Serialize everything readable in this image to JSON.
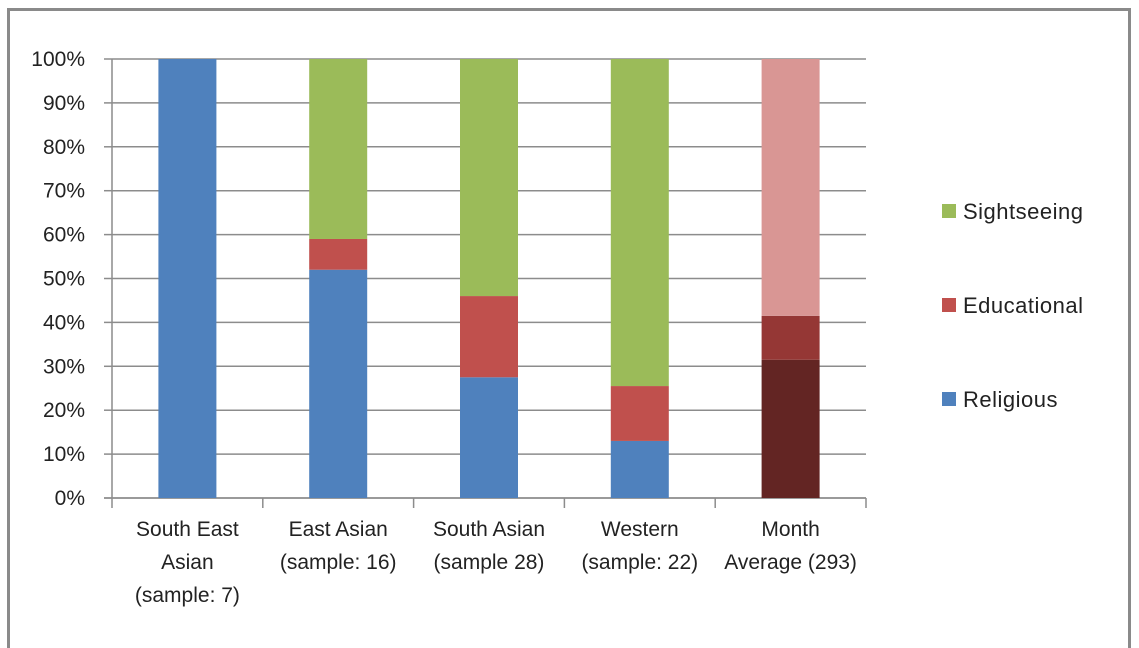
{
  "chart_data": {
    "type": "bar",
    "stacked": true,
    "percent_stacked": true,
    "categories": [
      [
        "South East",
        "Asian",
        "(sample: 7)"
      ],
      [
        "East Asian",
        "(sample: 16)"
      ],
      [
        "South Asian",
        "(sample 28)"
      ],
      [
        "Western",
        "(sample: 22)"
      ],
      [
        "Month",
        "Average (293)"
      ]
    ],
    "series": [
      {
        "name": "Religious",
        "color": "#4f81bd",
        "values": [
          100,
          52,
          27.5,
          13,
          31.5
        ]
      },
      {
        "name": "Educational",
        "color": "#c0504d",
        "values": [
          0,
          7,
          18.5,
          12.5,
          10
        ]
      },
      {
        "name": "Sightseeing",
        "color": "#9bbb59",
        "values": [
          0,
          41,
          54,
          74.5,
          58.5
        ]
      }
    ],
    "highlight_colors": {
      "category_index": 4,
      "colors": [
        "#632523",
        "#953735",
        "#d99694"
      ]
    },
    "yticks": [
      "0%",
      "10%",
      "20%",
      "30%",
      "40%",
      "50%",
      "60%",
      "70%",
      "80%",
      "90%",
      "100%"
    ],
    "ylim": [
      0,
      100
    ],
    "grid": true,
    "legend_position": "right",
    "legend_order": [
      "Sightseeing",
      "Educational",
      "Religious"
    ],
    "title": "",
    "xlabel": "",
    "ylabel": ""
  }
}
